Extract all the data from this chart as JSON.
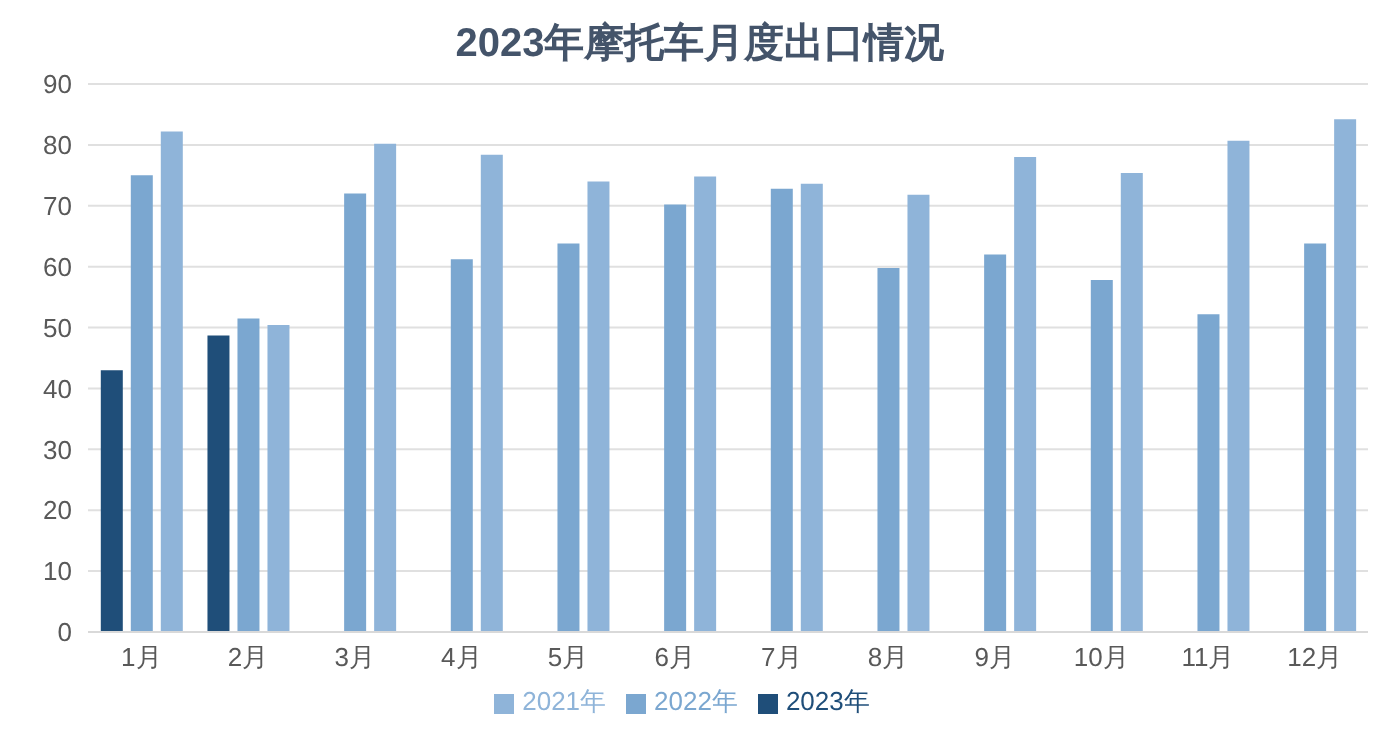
{
  "chart_data": {
    "type": "bar",
    "title": "2023年摩托车月度出口情况",
    "categories": [
      "1月",
      "2月",
      "3月",
      "4月",
      "5月",
      "6月",
      "7月",
      "8月",
      "9月",
      "10月",
      "11月",
      "12月"
    ],
    "series": [
      {
        "name": "2023年",
        "color": "#1f4e79",
        "values": [
          43,
          48.7,
          null,
          null,
          null,
          null,
          null,
          null,
          null,
          null,
          null,
          null
        ]
      },
      {
        "name": "2022年",
        "color": "#7ba7d0",
        "values": [
          75,
          51.5,
          72,
          61.2,
          63.8,
          70.2,
          72.8,
          59.8,
          62,
          57.8,
          52.2,
          63.8
        ]
      },
      {
        "name": "2021年",
        "color": "#8fb4d9",
        "values": [
          82.2,
          50.4,
          80.2,
          78.4,
          74,
          74.8,
          73.6,
          71.8,
          78,
          75.4,
          80.7,
          84.2
        ]
      }
    ],
    "ylim": [
      0,
      90
    ],
    "yticks": [
      0,
      10,
      20,
      30,
      40,
      50,
      60,
      70,
      80,
      90
    ],
    "grid": "y",
    "legend": "bottom"
  }
}
